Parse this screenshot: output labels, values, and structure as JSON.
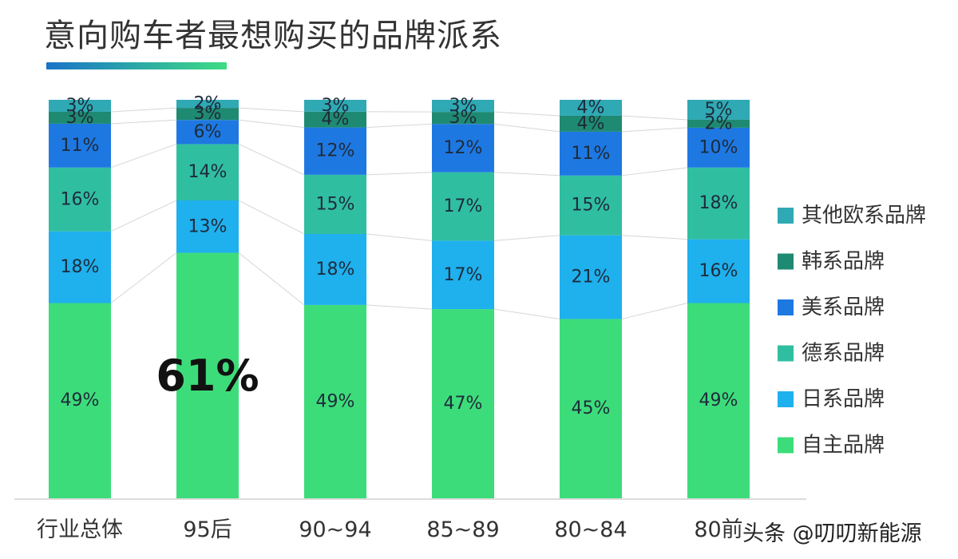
{
  "title": "意向购车者最想购买的品牌派系",
  "watermark": "头条 @叨叨新能源",
  "colors": {
    "title_underline_start": "#1a73c8",
    "title_underline_end": "#3ddc84",
    "axis_line": "#cfcfcf",
    "connector_line": "#d6d6d6",
    "label_text": "#1e2b3a",
    "highlight_text": "#111111"
  },
  "chart_data": {
    "type": "bar",
    "stacked": true,
    "normalized": true,
    "unit": "%",
    "categories": [
      "行业总体",
      "95后",
      "90~94",
      "85~89",
      "80~84",
      "80前"
    ],
    "series": [
      {
        "name": "自主品牌",
        "color": "#3ddc7a",
        "values": [
          49,
          61,
          49,
          47,
          45,
          49
        ]
      },
      {
        "name": "日系品牌",
        "color": "#1fb0ee",
        "values": [
          18,
          13,
          18,
          17,
          21,
          16
        ]
      },
      {
        "name": "德系品牌",
        "color": "#30bea1",
        "values": [
          16,
          14,
          15,
          17,
          15,
          18
        ]
      },
      {
        "name": "美系品牌",
        "color": "#1e78e2",
        "values": [
          11,
          6,
          12,
          12,
          11,
          10
        ]
      },
      {
        "name": "韩系品牌",
        "color": "#1f8a72",
        "values": [
          3,
          3,
          4,
          3,
          4,
          2
        ]
      },
      {
        "name": "其他欧系品牌",
        "color": "#2fa9b3",
        "values": [
          3,
          2,
          3,
          3,
          4,
          5
        ]
      }
    ],
    "highlight": {
      "category_index": 1,
      "series_index": 0,
      "label": "61%"
    },
    "legend": {
      "placement": "right",
      "order": [
        "其他欧系品牌",
        "韩系品牌",
        "美系品牌",
        "德系品牌",
        "日系品牌",
        "自主品牌"
      ]
    },
    "grid": false,
    "y_axis_visible": false
  }
}
